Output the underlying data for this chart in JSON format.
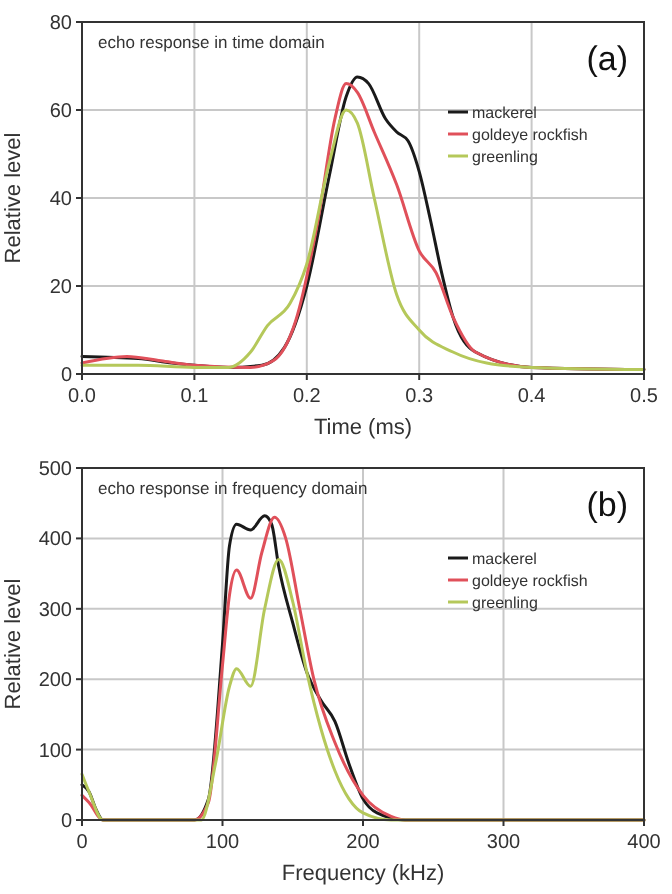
{
  "chart_data": [
    {
      "type": "line",
      "xlabel": "Time (ms)",
      "ylabel": "Relative level",
      "xlim": [
        0,
        0.5
      ],
      "xticks": [
        {
          "value": 0,
          "label": "0.0"
        },
        0.1,
        0.2,
        0.3,
        0.4,
        0.5
      ],
      "ylim": [
        0,
        80
      ],
      "yticks": [
        0,
        20,
        40,
        60,
        80
      ],
      "grid": true,
      "legend": "top right",
      "marker": "none",
      "line_style": "solid",
      "annotations": [
        "echo response in time domain",
        "(a)"
      ],
      "series": [
        {
          "name": "mackerel",
          "color": "#1a1a1a",
          "x": [
            0,
            0.05,
            0.08,
            0.1,
            0.13,
            0.16,
            0.18,
            0.2,
            0.22,
            0.235,
            0.245,
            0.255,
            0.27,
            0.28,
            0.29,
            0.3,
            0.31,
            0.32,
            0.33,
            0.35,
            0.4,
            0.5
          ],
          "values": [
            4,
            3.5,
            2.5,
            2,
            1.5,
            2,
            6,
            20,
            45,
            63,
            67.5,
            66,
            58,
            55,
            53,
            46,
            35,
            23,
            13,
            5,
            1.5,
            1
          ]
        },
        {
          "name": "goldeye rockfish",
          "color": "#e0505a",
          "x": [
            0,
            0.04,
            0.07,
            0.1,
            0.15,
            0.17,
            0.19,
            0.21,
            0.225,
            0.235,
            0.245,
            0.26,
            0.28,
            0.3,
            0.315,
            0.33,
            0.35,
            0.4,
            0.5
          ],
          "values": [
            2.5,
            4,
            3,
            2,
            1.5,
            3,
            12,
            35,
            58,
            66,
            64,
            55,
            43,
            28,
            23,
            13,
            5,
            1.5,
            1
          ]
        },
        {
          "name": "greenling",
          "color": "#b5c85a",
          "x": [
            0,
            0.05,
            0.1,
            0.13,
            0.15,
            0.165,
            0.185,
            0.2,
            0.22,
            0.235,
            0.245,
            0.26,
            0.28,
            0.3,
            0.33,
            0.36,
            0.4,
            0.5
          ],
          "values": [
            2,
            2,
            1.5,
            1.5,
            5,
            11,
            16,
            25,
            48,
            60,
            57,
            40,
            18,
            10,
            5,
            2.5,
            1.5,
            1
          ]
        }
      ]
    },
    {
      "type": "line",
      "xlabel": "Frequency (kHz)",
      "ylabel": "Relative level",
      "xlim": [
        0,
        400
      ],
      "xticks": [
        0,
        100,
        200,
        300,
        400
      ],
      "ylim": [
        0,
        500
      ],
      "yticks": [
        0,
        100,
        200,
        300,
        400,
        500
      ],
      "grid": true,
      "legend": "top right",
      "marker": "none",
      "line_style": "solid",
      "annotations": [
        "echo response in frequency domain",
        "(b)"
      ],
      "series": [
        {
          "name": "mackerel",
          "color": "#1a1a1a",
          "x": [
            0,
            5,
            10,
            15,
            80,
            90,
            100,
            105,
            110,
            120,
            130,
            135,
            140,
            150,
            160,
            170,
            180,
            190,
            200,
            210,
            230,
            400
          ],
          "values": [
            50,
            40,
            15,
            0,
            0,
            30,
            250,
            390,
            420,
            412,
            432,
            420,
            360,
            280,
            210,
            170,
            140,
            80,
            30,
            10,
            0,
            0
          ]
        },
        {
          "name": "goldeye rockfish",
          "color": "#e0505a",
          "x": [
            0,
            5,
            15,
            80,
            90,
            100,
            105,
            110,
            120,
            128,
            137,
            145,
            155,
            165,
            180,
            200,
            220,
            230,
            400
          ],
          "values": [
            35,
            25,
            0,
            0,
            25,
            220,
            320,
            355,
            315,
            380,
            430,
            400,
            300,
            200,
            110,
            35,
            5,
            0,
            0
          ]
        },
        {
          "name": "greenling",
          "color": "#b5c85a",
          "x": [
            0,
            5,
            15,
            85,
            95,
            105,
            110,
            120,
            130,
            140,
            150,
            160,
            170,
            180,
            190,
            200,
            220,
            400
          ],
          "values": [
            65,
            40,
            0,
            0,
            80,
            190,
            215,
            190,
            300,
            370,
            310,
            210,
            130,
            70,
            30,
            10,
            0,
            0
          ]
        }
      ]
    }
  ]
}
